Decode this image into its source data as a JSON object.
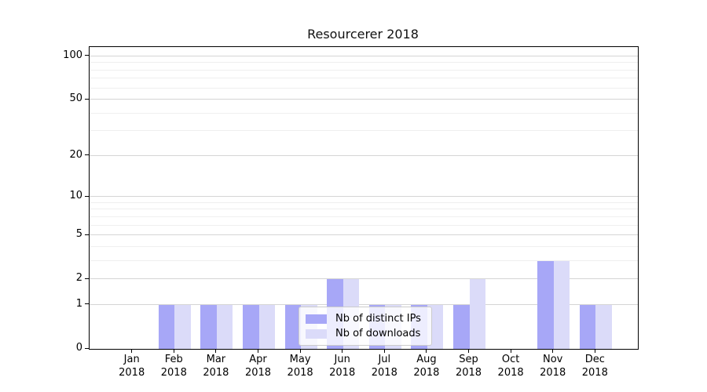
{
  "chart_data": {
    "type": "bar",
    "title": "Resourcerer 2018",
    "categories": [
      "Jan",
      "Feb",
      "Mar",
      "Apr",
      "May",
      "Jun",
      "Jul",
      "Aug",
      "Sep",
      "Oct",
      "Nov",
      "Dec"
    ],
    "x_axis": {
      "year_line": "2018"
    },
    "series": [
      {
        "name": "Nb of distinct IPs",
        "color": "#a7a7f7",
        "values": [
          0,
          1,
          1,
          1,
          1,
          2,
          1,
          1,
          1,
          0,
          3,
          1
        ]
      },
      {
        "name": "Nb of downloads",
        "color": "#dbdbf9",
        "values": [
          0,
          1,
          1,
          1,
          1,
          2,
          1,
          1,
          2,
          0,
          3,
          1
        ]
      }
    ],
    "y_axis": {
      "scale": "symlog",
      "ticks_major": [
        0,
        1,
        2,
        5,
        10,
        20,
        50,
        100
      ],
      "ticks_minor": [
        3,
        4,
        6,
        7,
        8,
        9,
        30,
        40,
        60,
        70,
        80,
        90
      ],
      "top_value": 115.7
    },
    "legend": {
      "entries": [
        "Nb of distinct IPs",
        "Nb of downloads"
      ],
      "position": "lower center"
    },
    "colors": {
      "grid_major": "#d5d5d5",
      "grid_minor": "#efefef",
      "axis": "#000000"
    }
  }
}
